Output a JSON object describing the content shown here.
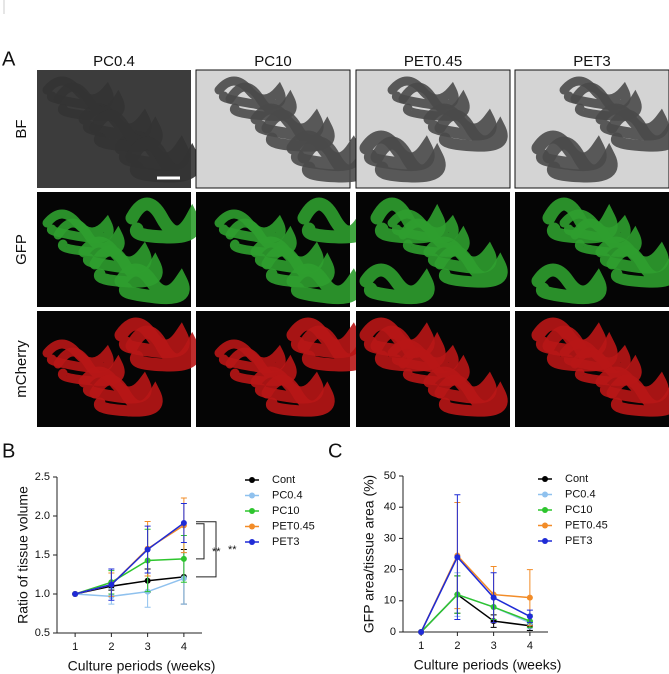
{
  "figure": {
    "panel_labels": [
      "A",
      "B",
      "C"
    ],
    "columns": [
      "PC0.4",
      "PC10",
      "PET0.45",
      "PET3"
    ],
    "rows": [
      "BF",
      "GFP",
      "mCherry"
    ]
  },
  "chart_data": [
    {
      "type": "line",
      "ylabel": "Ratio of tissue volume",
      "xlabel": "Culture periods (weeks)",
      "x": [
        1,
        2,
        3,
        4
      ],
      "xlim": [
        0.5,
        4.5
      ],
      "xticks": [
        1,
        2,
        3,
        4
      ],
      "ylim": [
        0.5,
        2.5
      ],
      "yticks": [
        0.5,
        {
          "value": 1,
          "label": "1.0"
        },
        1.5,
        {
          "value": 2,
          "label": "2.0"
        },
        2.5
      ],
      "annotations": [
        "**",
        "**"
      ],
      "series": [
        {
          "name": "Cont",
          "color": "#000000",
          "values": [
            1.0,
            1.1,
            1.17,
            1.22
          ],
          "errors": [
            0,
            0.05,
            0.15,
            0.35
          ]
        },
        {
          "name": "PC0.4",
          "color": "#8fc1ee",
          "values": [
            1.0,
            0.97,
            1.03,
            1.2
          ],
          "errors": [
            0,
            0.1,
            0.2,
            0.33
          ]
        },
        {
          "name": "PC10",
          "color": "#2ec52e",
          "values": [
            1.0,
            1.15,
            1.43,
            1.45
          ],
          "errors": [
            0,
            0.15,
            0.4,
            0.3
          ]
        },
        {
          "name": "PET0.45",
          "color": "#f28c28",
          "values": [
            1.0,
            1.12,
            1.58,
            1.88
          ],
          "errors": [
            0,
            0.15,
            0.35,
            0.35
          ]
        },
        {
          "name": "PET3",
          "color": "#1f2bd6",
          "values": [
            1.0,
            1.12,
            1.57,
            1.91
          ],
          "errors": [
            0,
            0.2,
            0.3,
            0.25
          ]
        }
      ]
    },
    {
      "type": "line",
      "ylabel": "GFP area/tissue area (%)",
      "xlabel": "Culture periods (weeks)",
      "x": [
        1,
        2,
        3,
        4
      ],
      "xlim": [
        0.5,
        4.5
      ],
      "xticks": [
        1,
        2,
        3,
        4
      ],
      "ylim": [
        0,
        50
      ],
      "yticks": [
        0,
        10,
        20,
        30,
        40,
        50
      ],
      "series": [
        {
          "name": "Cont",
          "color": "#000000",
          "values": [
            0,
            12,
            3.5,
            2
          ],
          "errors": [
            0,
            6,
            2,
            1.5
          ]
        },
        {
          "name": "PC0.4",
          "color": "#8fc1ee",
          "values": [
            0,
            12,
            8,
            3
          ],
          "errors": [
            0,
            7,
            4,
            2
          ]
        },
        {
          "name": "PC10",
          "color": "#2ec52e",
          "values": [
            0,
            12,
            8,
            3.5
          ],
          "errors": [
            0,
            6,
            4,
            2
          ]
        },
        {
          "name": "PET0.45",
          "color": "#f28c28",
          "values": [
            0,
            24.5,
            12,
            11
          ],
          "errors": [
            0,
            17,
            9,
            9
          ]
        },
        {
          "name": "PET3",
          "color": "#1f2bd6",
          "values": [
            0,
            24,
            11,
            5
          ],
          "errors": [
            0,
            20,
            8,
            2
          ]
        }
      ]
    }
  ]
}
